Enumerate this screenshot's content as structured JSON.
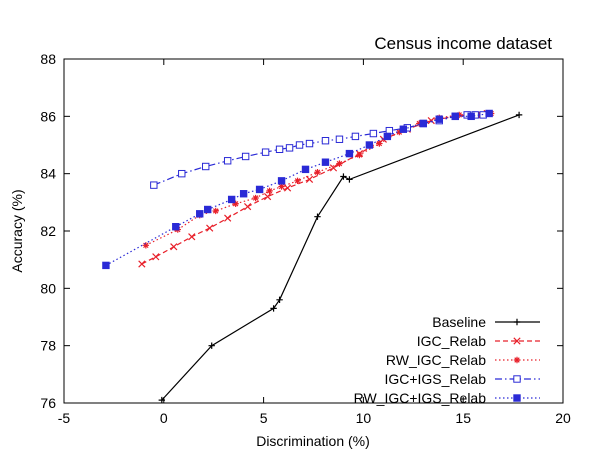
{
  "chart_data": {
    "type": "line",
    "title": "Census income dataset",
    "xlabel": "Discrimination (%)",
    "ylabel": "Accuracy (%)",
    "xlim": [
      -5,
      20
    ],
    "ylim": [
      76,
      88
    ],
    "xticks": [
      "-5",
      "0",
      "5",
      "10",
      "15",
      "20"
    ],
    "yticks": [
      "76",
      "78",
      "80",
      "82",
      "84",
      "86",
      "88"
    ],
    "grid": false,
    "legend_position": "bottom-right",
    "series": [
      {
        "name": "Baseline",
        "color": "#000000",
        "style": "solid",
        "marker": "plus",
        "x": [
          -0.1,
          2.4,
          5.5,
          5.8,
          7.7,
          9.0,
          9.3,
          17.8
        ],
        "y": [
          76.1,
          78.0,
          79.3,
          79.6,
          82.5,
          83.9,
          83.8,
          86.05
        ]
      },
      {
        "name": "IGC_Relab",
        "color": "#e8202a",
        "style": "dashed",
        "marker": "x",
        "x": [
          -1.1,
          -0.4,
          0.5,
          1.4,
          2.3,
          3.2,
          4.2,
          5.2,
          6.2,
          7.3,
          8.5,
          9.8,
          11.0,
          12.2,
          13.4,
          14.6,
          15.4,
          16.2
        ],
        "y": [
          80.85,
          81.1,
          81.45,
          81.8,
          82.1,
          82.45,
          82.85,
          83.2,
          83.5,
          83.8,
          84.2,
          84.7,
          85.2,
          85.55,
          85.85,
          86.0,
          86.05,
          86.1
        ]
      },
      {
        "name": "RW_IGC_Relab",
        "color": "#e8202a",
        "style": "dotted",
        "marker": "star",
        "x": [
          -0.9,
          0.7,
          1.8,
          2.6,
          3.6,
          4.6,
          5.3,
          5.9,
          6.7,
          7.7,
          8.8,
          9.8,
          10.8,
          11.8,
          12.8,
          13.8,
          14.8,
          15.8,
          16.4
        ],
        "y": [
          81.5,
          82.05,
          82.55,
          82.7,
          82.95,
          83.15,
          83.4,
          83.55,
          83.75,
          84.05,
          84.35,
          84.65,
          85.05,
          85.45,
          85.75,
          85.95,
          86.05,
          86.05,
          86.1
        ]
      },
      {
        "name": "IGC+IGS_Relab",
        "color": "#2a2ad6",
        "style": "dashdot",
        "marker": "open-square",
        "x": [
          -0.5,
          0.9,
          2.1,
          3.2,
          4.1,
          5.1,
          5.8,
          6.3,
          6.8,
          7.3,
          8.1,
          8.8,
          9.6,
          10.5,
          11.3,
          12.2,
          13.0,
          13.8,
          14.6,
          15.2,
          15.6,
          16.0
        ],
        "y": [
          83.6,
          84.0,
          84.25,
          84.45,
          84.6,
          84.75,
          84.85,
          84.9,
          85.0,
          85.05,
          85.15,
          85.2,
          85.3,
          85.4,
          85.5,
          85.6,
          85.75,
          85.85,
          86.0,
          86.05,
          86.05,
          86.05
        ]
      },
      {
        "name": "RW_IGC+IGS_Relab",
        "color": "#2a2ad6",
        "style": "dotted",
        "marker": "filled-square",
        "x": [
          -2.9,
          0.6,
          1.8,
          2.2,
          3.4,
          4.0,
          4.8,
          5.9,
          7.1,
          8.1,
          9.3,
          10.3,
          11.2,
          12.0,
          13.0,
          13.8,
          14.6,
          15.4,
          16.3
        ],
        "y": [
          80.8,
          82.15,
          82.6,
          82.75,
          83.1,
          83.3,
          83.45,
          83.75,
          84.15,
          84.4,
          84.7,
          85.0,
          85.3,
          85.55,
          85.75,
          85.9,
          86.0,
          86.0,
          86.1
        ]
      }
    ]
  }
}
